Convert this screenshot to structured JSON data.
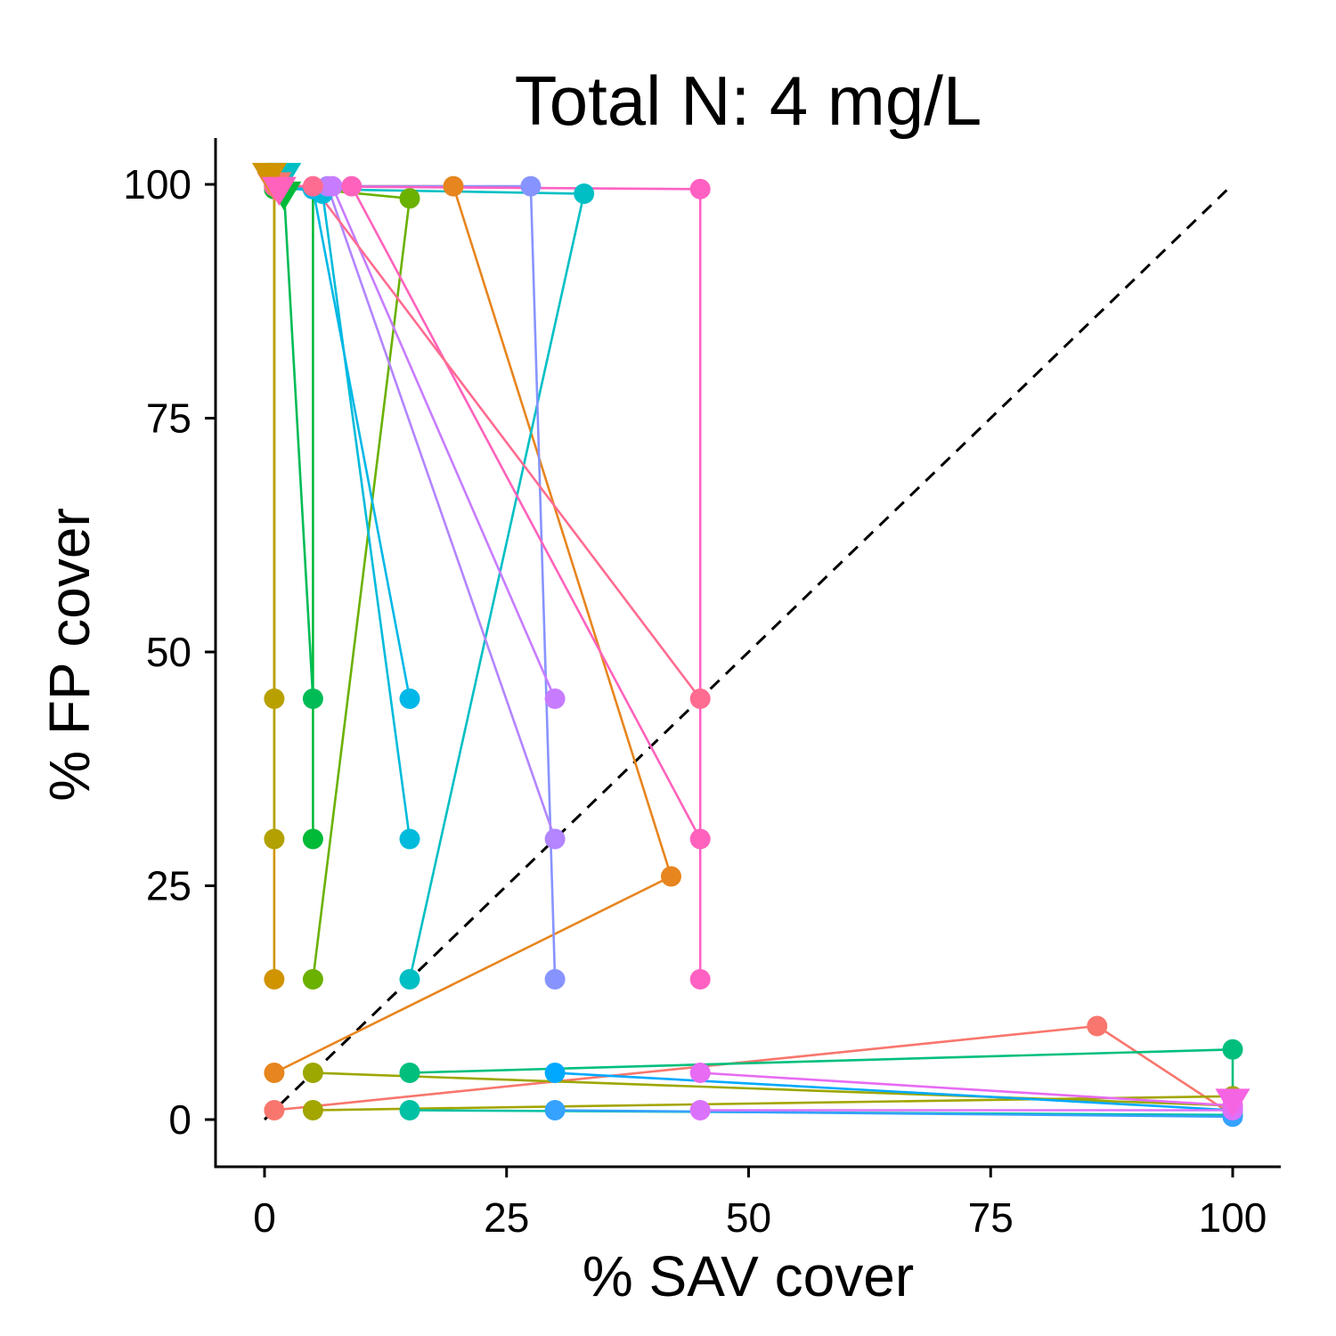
{
  "chart_data": {
    "type": "line",
    "title": "Total N: 4 mg/L",
    "xlabel": "% SAV cover",
    "ylabel": "% FP cover",
    "xlim": [
      -5,
      105
    ],
    "ylim": [
      -5,
      105
    ],
    "x_ticks": [
      0,
      25,
      50,
      75,
      100
    ],
    "y_ticks": [
      0,
      25,
      50,
      75,
      100
    ],
    "grid": false,
    "legend": "none",
    "reference_line": {
      "style": "dashed",
      "color": "#000000",
      "from": [
        0,
        0
      ],
      "to": [
        100,
        100
      ]
    },
    "series": [
      {
        "color": "#F8766D",
        "points": [
          [
            1,
            1
          ],
          [
            86,
            10
          ],
          [
            100,
            0.5
          ]
        ]
      },
      {
        "color": "#E7851E",
        "points": [
          [
            1,
            5
          ],
          [
            42,
            26
          ],
          [
            19.5,
            99.8
          ],
          [
            1,
            99.8
          ]
        ]
      },
      {
        "color": "#D09400",
        "points": [
          [
            1,
            15
          ],
          [
            1,
            99.5
          ],
          [
            1,
            100
          ]
        ]
      },
      {
        "color": "#B2A100",
        "points": [
          [
            1,
            30
          ],
          [
            1,
            100
          ]
        ]
      },
      {
        "color": "#B8A000",
        "points": [
          [
            1,
            45
          ],
          [
            1,
            100
          ]
        ]
      },
      {
        "color": "#A3A500",
        "points": [
          [
            5,
            1
          ],
          [
            100,
            2.5
          ]
        ]
      },
      {
        "color": "#9CA700",
        "points": [
          [
            5,
            5
          ],
          [
            100,
            1.5
          ]
        ]
      },
      {
        "color": "#6BB100",
        "points": [
          [
            5,
            15
          ],
          [
            15,
            98.5
          ],
          [
            5,
            99.5
          ],
          [
            1,
            99.5
          ]
        ]
      },
      {
        "color": "#00BA38",
        "points": [
          [
            5,
            30
          ],
          [
            5,
            99.5
          ],
          [
            1,
            99.5
          ]
        ]
      },
      {
        "color": "#00BC56",
        "points": [
          [
            5,
            45
          ],
          [
            2,
            99.5
          ]
        ]
      },
      {
        "color": "#00BF7D",
        "points": [
          [
            15,
            5
          ],
          [
            100,
            7.5
          ],
          [
            100,
            1
          ]
        ]
      },
      {
        "color": "#00C1A3",
        "points": [
          [
            15,
            1
          ],
          [
            100,
            0.5
          ]
        ]
      },
      {
        "color": "#00BFC4",
        "points": [
          [
            15,
            15
          ],
          [
            33,
            99
          ],
          [
            5,
            99.5
          ],
          [
            1,
            100
          ]
        ]
      },
      {
        "color": "#00BBDB",
        "points": [
          [
            15,
            30
          ],
          [
            6,
            99
          ],
          [
            1,
            100
          ]
        ]
      },
      {
        "color": "#00B8E7",
        "points": [
          [
            15,
            45
          ],
          [
            5,
            99.5
          ],
          [
            1,
            99.8
          ]
        ]
      },
      {
        "color": "#00A9FF",
        "points": [
          [
            30,
            5
          ],
          [
            100,
            1
          ]
        ]
      },
      {
        "color": "#35A2FF",
        "points": [
          [
            30,
            1
          ],
          [
            100,
            0.3
          ]
        ]
      },
      {
        "color": "#8794FF",
        "points": [
          [
            30,
            15
          ],
          [
            27.5,
            99.8
          ],
          [
            1,
            99.8
          ]
        ]
      },
      {
        "color": "#B385FF",
        "points": [
          [
            30,
            30
          ],
          [
            6.5,
            99.8
          ],
          [
            1,
            99.8
          ]
        ]
      },
      {
        "color": "#C77CFF",
        "points": [
          [
            30,
            45
          ],
          [
            7,
            99.8
          ],
          [
            1,
            99.8
          ]
        ]
      },
      {
        "color": "#DB72FB",
        "points": [
          [
            45,
            1
          ],
          [
            100,
            1
          ]
        ]
      },
      {
        "color": "#E76BF3",
        "points": [
          [
            45,
            5
          ],
          [
            100,
            1.5
          ]
        ]
      },
      {
        "color": "#FF61C3",
        "points": [
          [
            45,
            15
          ],
          [
            45,
            99.5
          ],
          [
            1,
            99.8
          ]
        ]
      },
      {
        "color": "#FF62BC",
        "points": [
          [
            45,
            30
          ],
          [
            9,
            99.8
          ],
          [
            1,
            99.8
          ]
        ]
      },
      {
        "color": "#FF6C91",
        "points": [
          [
            45,
            45
          ],
          [
            5,
            99.8
          ],
          [
            1,
            99.8
          ]
        ]
      }
    ],
    "end_markers": [
      {
        "shape": "triangle-down",
        "color": "#F564E3",
        "x": 100,
        "y": 2
      },
      {
        "shape": "triangle-down",
        "color": "#00BFC4",
        "x": 2,
        "y": 101
      },
      {
        "shape": "triangle-down",
        "color": "#00BA38",
        "x": 2,
        "y": 99
      },
      {
        "shape": "triangle-down",
        "color": "#F8766D",
        "x": 1,
        "y": 100
      },
      {
        "shape": "triangle-down",
        "color": "#D09400",
        "x": 0.5,
        "y": 101
      },
      {
        "shape": "triangle-down",
        "color": "#FF62BC",
        "x": 1.5,
        "y": 99.5
      }
    ]
  }
}
